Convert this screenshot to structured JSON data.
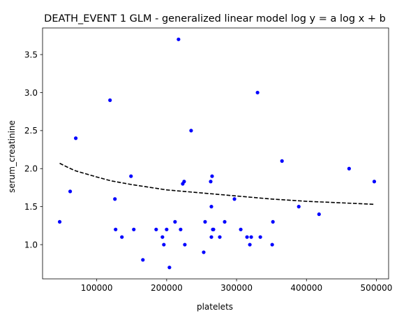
{
  "chart_data": {
    "type": "scatter",
    "title": "DEATH_EVENT 1 GLM - generalized linear model  log y = a log x + b",
    "xlabel": "platelets",
    "ylabel": "serum_creatinine",
    "xlim": [
      22500,
      517500
    ],
    "ylim": [
      0.55,
      3.85
    ],
    "x_ticks": [
      100000,
      200000,
      300000,
      400000,
      500000
    ],
    "x_tick_labels": [
      "100000",
      "200000",
      "300000",
      "400000",
      "500000"
    ],
    "y_ticks": [
      1.0,
      1.5,
      2.0,
      2.5,
      3.0,
      3.5
    ],
    "y_tick_labels": [
      "1.0",
      "1.5",
      "2.0",
      "2.5",
      "3.0",
      "3.5"
    ],
    "grid": false,
    "series": [
      {
        "kind": "points",
        "color": "#0000ff",
        "marker": "circle",
        "points": [
          [
            47000,
            1.3
          ],
          [
            62000,
            1.7
          ],
          [
            70000,
            2.4
          ],
          [
            119000,
            2.9
          ],
          [
            126000,
            1.6
          ],
          [
            127000,
            1.2
          ],
          [
            136000,
            1.1
          ],
          [
            149000,
            1.9
          ],
          [
            153000,
            1.2
          ],
          [
            166000,
            0.8
          ],
          [
            185000,
            1.2
          ],
          [
            194000,
            1.1
          ],
          [
            196000,
            1.0
          ],
          [
            200000,
            1.2
          ],
          [
            204000,
            0.7
          ],
          [
            212000,
            1.3
          ],
          [
            217000,
            3.7
          ],
          [
            220000,
            1.2
          ],
          [
            223000,
            1.8
          ],
          [
            225000,
            1.83
          ],
          [
            226000,
            1.0
          ],
          [
            235000,
            2.5
          ],
          [
            253000,
            0.9
          ],
          [
            255000,
            1.3
          ],
          [
            263000,
            1.83
          ],
          [
            264000,
            1.1
          ],
          [
            264000,
            1.5
          ],
          [
            265000,
            1.9
          ],
          [
            266000,
            1.2
          ],
          [
            267000,
            1.2
          ],
          [
            276000,
            1.1
          ],
          [
            283000,
            1.3
          ],
          [
            297000,
            1.6
          ],
          [
            306000,
            1.2
          ],
          [
            315000,
            1.1
          ],
          [
            319000,
            1.0
          ],
          [
            321000,
            1.1
          ],
          [
            330000,
            3.0
          ],
          [
            334000,
            1.1
          ],
          [
            351000,
            1.0
          ],
          [
            352000,
            1.3
          ],
          [
            365000,
            2.1
          ],
          [
            389000,
            1.5
          ],
          [
            418000,
            1.4
          ],
          [
            461000,
            2.0
          ],
          [
            497000,
            1.83
          ]
        ]
      },
      {
        "kind": "fit-curve",
        "color": "#000000",
        "dashed": true,
        "points": [
          [
            47000,
            2.07
          ],
          [
            60000,
            2.01
          ],
          [
            70000,
            1.97
          ],
          [
            85000,
            1.93
          ],
          [
            100000,
            1.89
          ],
          [
            120000,
            1.84
          ],
          [
            150000,
            1.79
          ],
          [
            200000,
            1.72
          ],
          [
            250000,
            1.68
          ],
          [
            300000,
            1.64
          ],
          [
            350000,
            1.6
          ],
          [
            400000,
            1.57
          ],
          [
            450000,
            1.55
          ],
          [
            497000,
            1.53
          ]
        ]
      }
    ]
  }
}
